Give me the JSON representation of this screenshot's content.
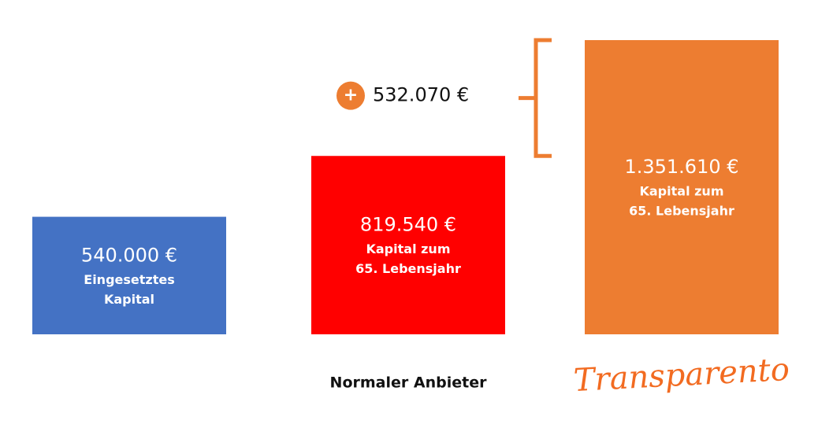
{
  "chart_data": {
    "type": "bar",
    "categories": [
      null,
      "Normaler Anbieter",
      "Transparento"
    ],
    "values": [
      540000,
      819540,
      1351610
    ],
    "value_labels": [
      "540.000 €",
      "819.540 €",
      "1.351.610 €"
    ],
    "bar_labels": [
      [
        "Eingesetztes",
        "Kapital"
      ],
      [
        "Kapital zum",
        "65. Lebensjahr"
      ],
      [
        "Kapital zum",
        "65. Lebensjahr"
      ]
    ],
    "colors": [
      "#4472c4",
      "#ff0000",
      "#ed7d31"
    ],
    "difference": {
      "symbol": "+",
      "value": 532070,
      "label": "532.070 €",
      "color": "#ed7d31"
    }
  }
}
